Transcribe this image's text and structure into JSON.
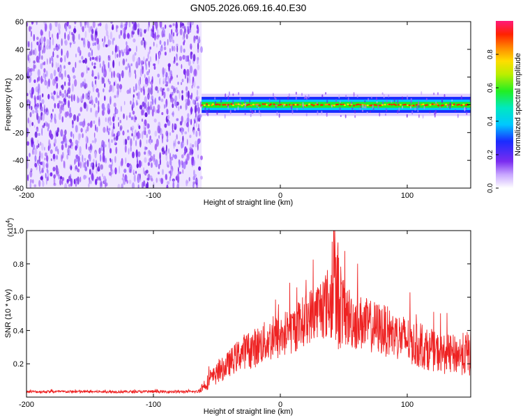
{
  "title": "GN05.2026.069.16.40.E30",
  "colors": {
    "snr_line": "#ee2222",
    "scatter_purple": "#7a2cf0",
    "axis": "#000000"
  },
  "chart_data": [
    {
      "type": "heatmap",
      "name": "spectrogram",
      "title": "GN05.2026.069.16.40.E30",
      "xlabel": "Height of straight line (km)",
      "ylabel": "Frequency (Hz)",
      "xlim": [
        -200,
        150
      ],
      "ylim": [
        -60,
        60
      ],
      "x_ticks": [
        "-200",
        "-100",
        "0",
        "100"
      ],
      "y_ticks": [
        "60",
        "40",
        "20",
        "0",
        "-20",
        "-40",
        "-60"
      ],
      "x_tick_values": [
        -200,
        -100,
        0,
        100
      ],
      "y_tick_values": [
        60,
        40,
        20,
        0,
        -20,
        -40,
        -60
      ],
      "noise_region": {
        "x_range": [
          -200,
          -62
        ],
        "amplitude": 0.15
      },
      "signal_band": {
        "x_range": [
          -62,
          150
        ],
        "center_frequency": 0,
        "half_width": 5,
        "peak_amplitude": 0.95
      },
      "colorbar": {
        "label": "Normalized spectral amplitude",
        "range": [
          0,
          1
        ],
        "ticks": [
          "0.0",
          "0.2",
          "0.4",
          "0.6",
          "0.8"
        ],
        "tick_values": [
          0.0,
          0.2,
          0.4,
          0.6,
          0.8
        ]
      }
    },
    {
      "type": "line",
      "name": "snr",
      "xlabel": "Height of straight line (km)",
      "ylabel": "SNR (10 * v/v)",
      "multiplier_label": "(x10",
      "multiplier_exp": "4",
      "multiplier_close": ")",
      "xlim": [
        -200,
        150
      ],
      "ylim": [
        0,
        1.0
      ],
      "x_ticks": [
        "-200",
        "-100",
        "0",
        "100"
      ],
      "y_ticks": [
        "0.2",
        "0.4",
        "0.6",
        "0.8",
        "1.0"
      ],
      "x_tick_values": [
        -200,
        -100,
        0,
        100
      ],
      "y_tick_values": [
        0.2,
        0.4,
        0.6,
        0.8,
        1.0
      ],
      "envelope": {
        "x": [
          -200,
          -65,
          -60,
          -50,
          -40,
          -30,
          -20,
          -10,
          0,
          10,
          20,
          30,
          40,
          45,
          50,
          60,
          70,
          80,
          90,
          100,
          110,
          120,
          130,
          140,
          150
        ],
        "mean": [
          0.03,
          0.03,
          0.06,
          0.12,
          0.18,
          0.24,
          0.26,
          0.3,
          0.32,
          0.36,
          0.42,
          0.48,
          0.5,
          0.52,
          0.44,
          0.4,
          0.38,
          0.36,
          0.33,
          0.3,
          0.26,
          0.24,
          0.22,
          0.22,
          0.22
        ],
        "spread": [
          0.01,
          0.01,
          0.05,
          0.08,
          0.1,
          0.13,
          0.15,
          0.16,
          0.18,
          0.18,
          0.2,
          0.22,
          0.3,
          0.45,
          0.25,
          0.22,
          0.2,
          0.2,
          0.18,
          0.18,
          0.16,
          0.15,
          0.15,
          0.15,
          0.18
        ]
      },
      "peak": {
        "x": 42,
        "y": 1.0
      }
    }
  ]
}
